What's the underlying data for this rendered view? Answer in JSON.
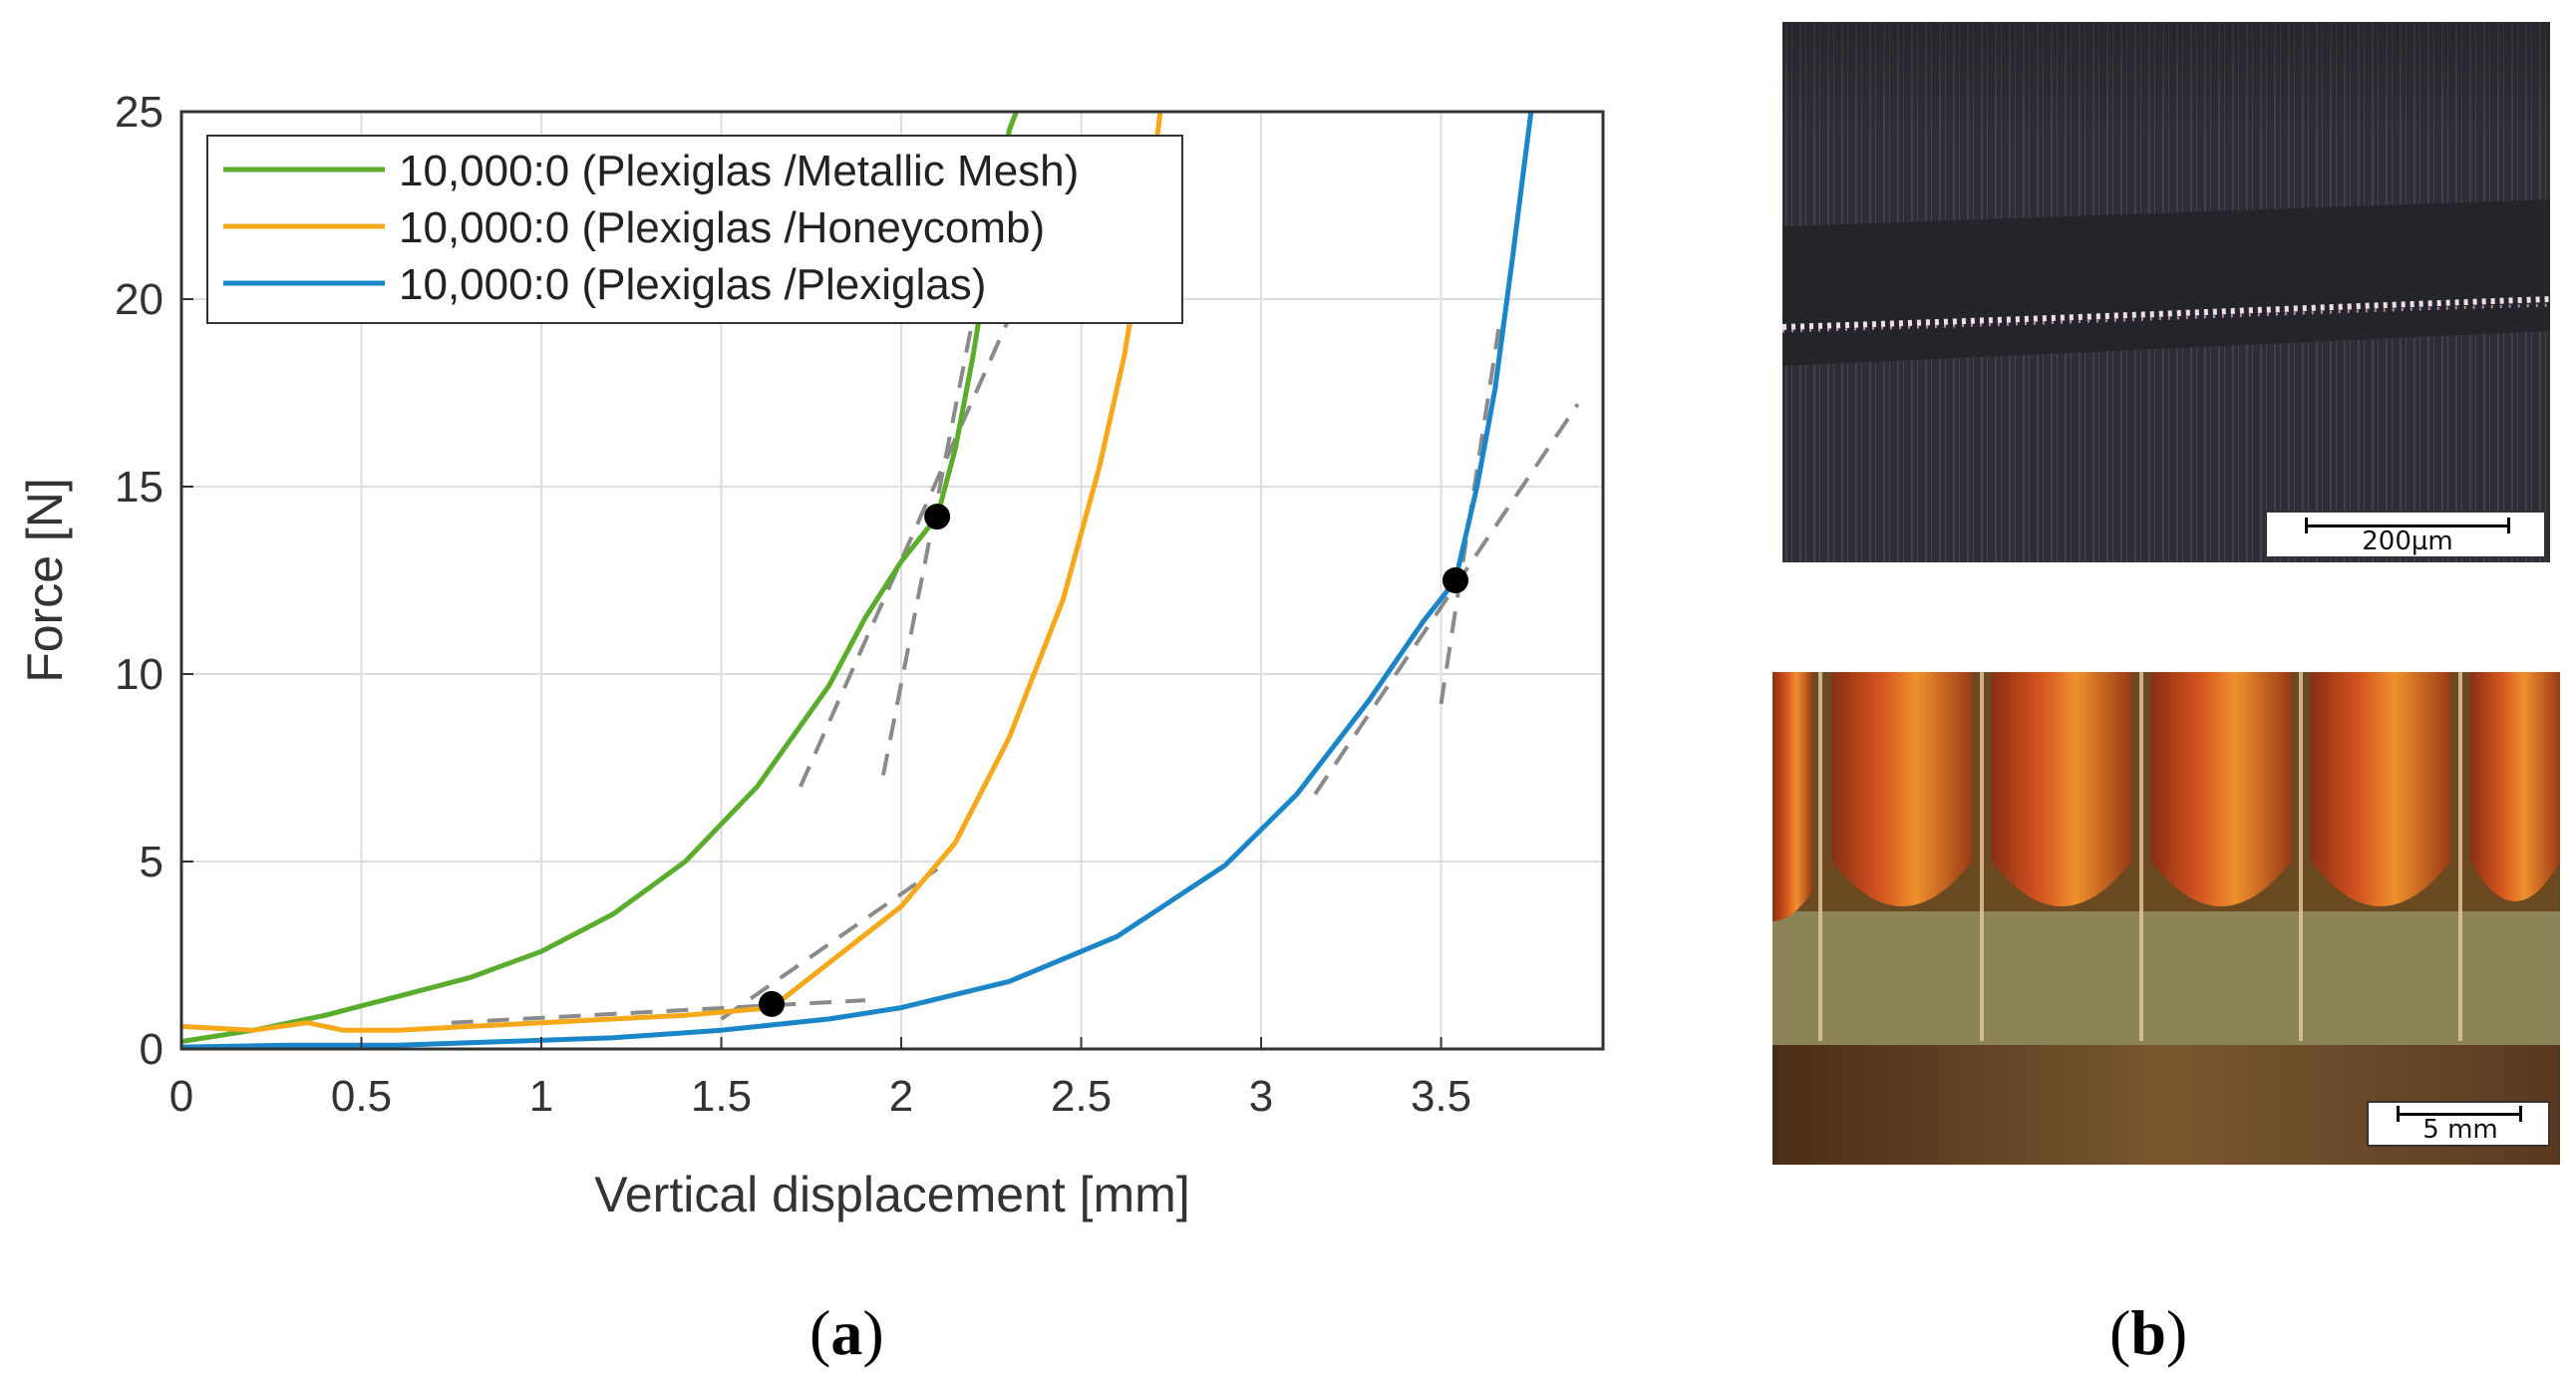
{
  "chart_data": {
    "type": "line",
    "xlabel": "Vertical displacement [mm]",
    "ylabel": "Force [N]",
    "xlim": [
      0,
      3.95
    ],
    "ylim": [
      0,
      25
    ],
    "xticks": [
      "0",
      "0.5",
      "1",
      "1.5",
      "2",
      "2.5",
      "3",
      "3.5"
    ],
    "xtick_values": [
      0,
      0.5,
      1,
      1.5,
      2,
      2.5,
      3,
      3.5
    ],
    "yticks": [
      "0",
      "5",
      "10",
      "15",
      "20",
      "25"
    ],
    "ytick_values": [
      0,
      5,
      10,
      15,
      20,
      25
    ],
    "grid": true,
    "legend_position": "top-left",
    "series": [
      {
        "name": "10,000:0 (Plexiglas /Metallic Mesh)",
        "color": "#5aac2c",
        "x": [
          0,
          0.2,
          0.4,
          0.6,
          0.8,
          1.0,
          1.2,
          1.4,
          1.6,
          1.8,
          1.9,
          2.0,
          2.1,
          2.15,
          2.2,
          2.25,
          2.3,
          2.32
        ],
        "y": [
          0.2,
          0.5,
          0.9,
          1.4,
          1.9,
          2.6,
          3.6,
          5.0,
          7.0,
          9.7,
          11.5,
          13.0,
          14.2,
          16.0,
          18.5,
          21.5,
          24.5,
          25
        ]
      },
      {
        "name": "10,000:0 (Plexiglas /Honeycomb)",
        "color": "#f5a81a",
        "x": [
          0,
          0.2,
          0.35,
          0.45,
          0.6,
          0.8,
          1.0,
          1.2,
          1.4,
          1.64,
          1.8,
          2.0,
          2.15,
          2.3,
          2.45,
          2.55,
          2.62,
          2.68,
          2.72
        ],
        "y": [
          0.6,
          0.5,
          0.7,
          0.5,
          0.5,
          0.6,
          0.7,
          0.8,
          0.9,
          1.1,
          2.3,
          3.8,
          5.5,
          8.3,
          12.0,
          15.5,
          18.5,
          22.0,
          25
        ]
      },
      {
        "name": "10,000:0 (Plexiglas /Plexiglas)",
        "color": "#1a86c8",
        "x": [
          0,
          0.3,
          0.6,
          0.9,
          1.2,
          1.5,
          1.8,
          2.0,
          2.3,
          2.6,
          2.9,
          3.1,
          3.3,
          3.45,
          3.54,
          3.6,
          3.65,
          3.7,
          3.75
        ],
        "y": [
          0.05,
          0.1,
          0.1,
          0.2,
          0.3,
          0.5,
          0.8,
          1.1,
          1.8,
          3.0,
          4.9,
          6.8,
          9.3,
          11.4,
          12.5,
          15.0,
          17.6,
          21.2,
          25
        ]
      }
    ],
    "tangents": [
      {
        "x": [
          1.72,
          2.3
        ],
        "y": [
          7.0,
          19.5
        ]
      },
      {
        "x": [
          1.95,
          2.22
        ],
        "y": [
          7.3,
          20.5
        ]
      },
      {
        "x": [
          0.75,
          1.9
        ],
        "y": [
          0.7,
          1.3
        ]
      },
      {
        "x": [
          1.5,
          2.1
        ],
        "y": [
          0.8,
          4.8
        ]
      },
      {
        "x": [
          3.15,
          3.88
        ],
        "y": [
          6.8,
          17.2
        ]
      },
      {
        "x": [
          3.5,
          3.66
        ],
        "y": [
          9.2,
          19.2
        ]
      }
    ],
    "markers": [
      {
        "x": 2.1,
        "y": 14.2
      },
      {
        "x": 1.64,
        "y": 1.2
      },
      {
        "x": 3.54,
        "y": 12.5
      }
    ]
  },
  "panel_a_label": "a",
  "panel_b_label": "b",
  "micrograph_top": {
    "scale_label": "200µm",
    "colors": {
      "bg": "#2b2b33",
      "band": "#24242b",
      "speckle": "#f2dcea"
    }
  },
  "micrograph_bottom": {
    "scale_label": "5 mm",
    "colors": {
      "copper": "#c2461a",
      "glow": "#f08a2a",
      "gap": "#8a6a3a",
      "substrate": "#8c8458",
      "bottom": "#5a3a1f"
    }
  }
}
